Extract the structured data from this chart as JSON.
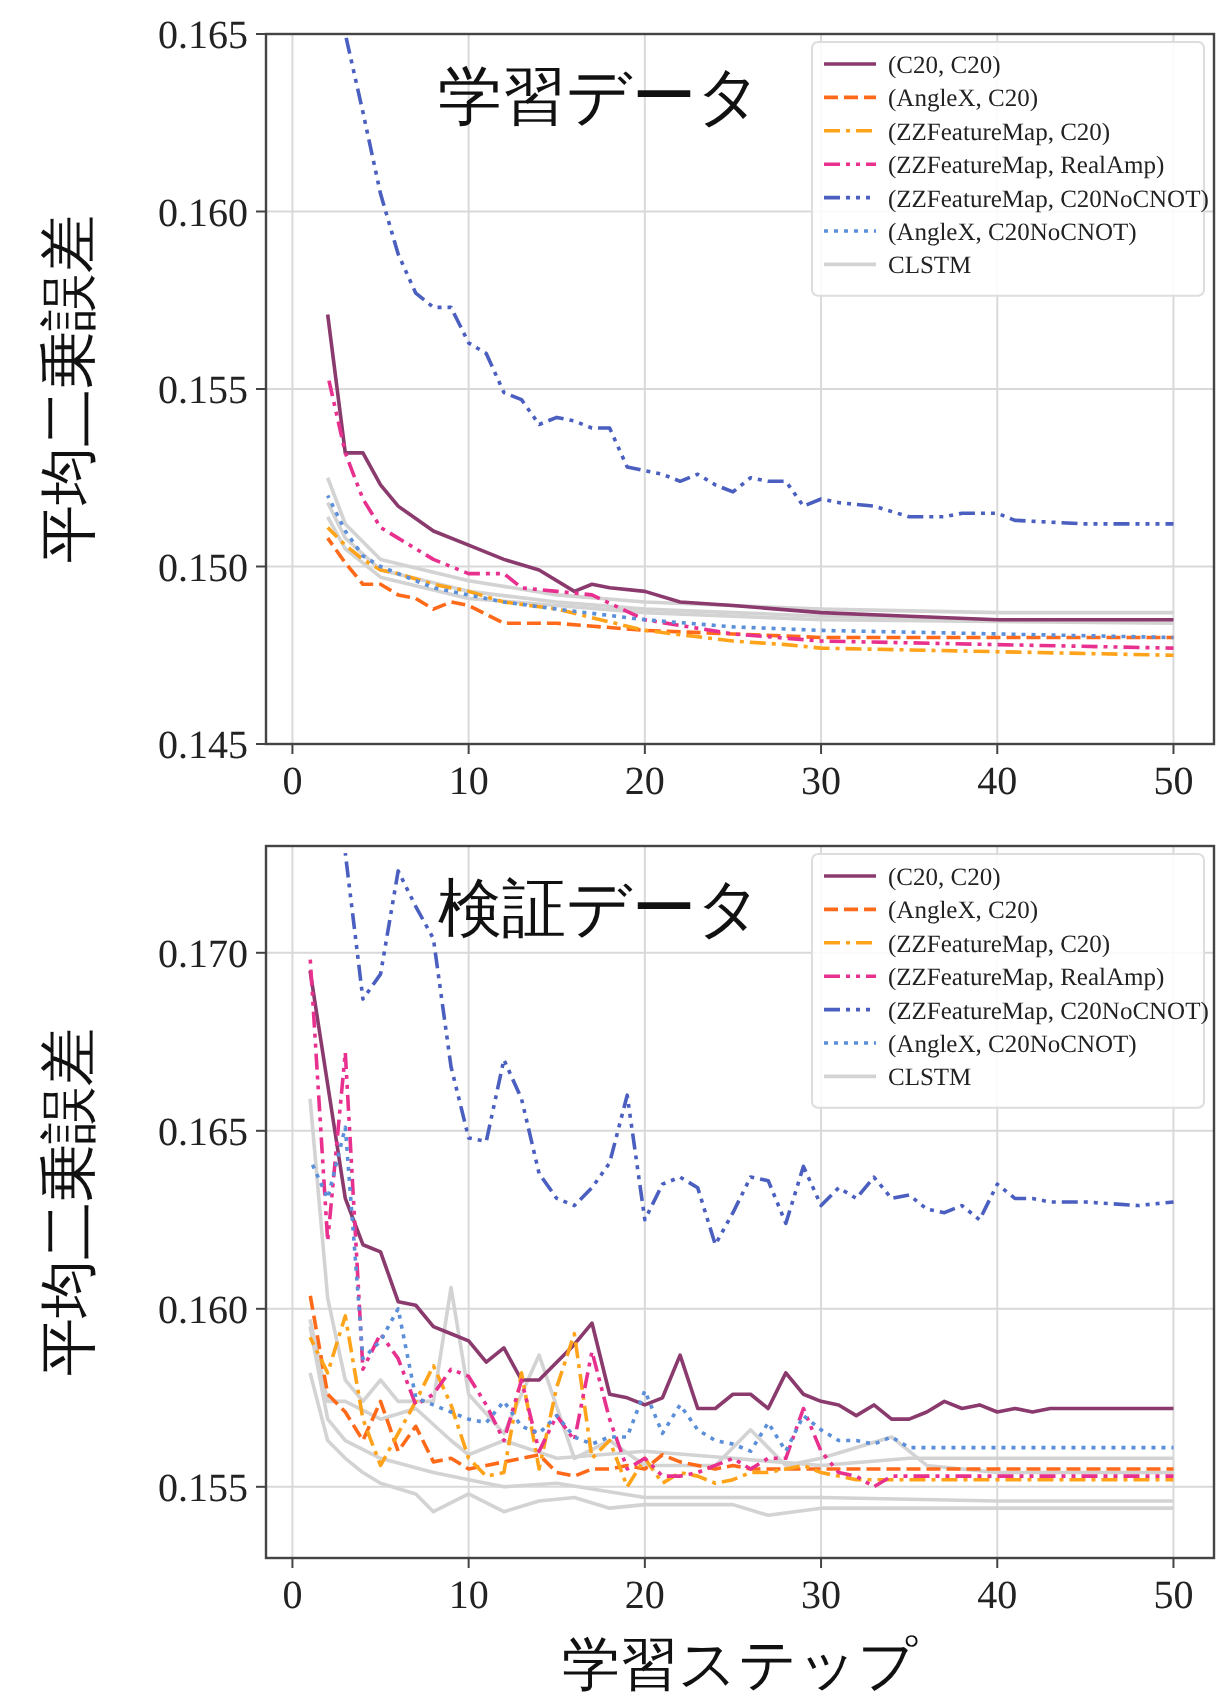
{
  "chart_data": [
    {
      "type": "line",
      "title": "学習データ",
      "ylabel": "平均二乗誤差",
      "xlim": [
        -1.5,
        52.3
      ],
      "ylim": [
        0.145,
        0.165
      ],
      "xticks": [
        0,
        10,
        20,
        30,
        40,
        50
      ],
      "yticks": [
        0.145,
        {
          "value": 0.15,
          "label": "0.150"
        },
        0.155,
        {
          "value": 0.16,
          "label": "0.160"
        },
        0.165
      ],
      "grid": true,
      "legend": "top right",
      "series": [
        {
          "name": "(C20, C20)",
          "color": "#8b3a6e",
          "line_style": "solid",
          "x": [
            2,
            3,
            4,
            5,
            6,
            8,
            10,
            12,
            14,
            16,
            17,
            18,
            20,
            22,
            25,
            30,
            35,
            40,
            50
          ],
          "values": [
            0.1571,
            0.1532,
            0.1532,
            0.1523,
            0.1517,
            0.151,
            0.1506,
            0.1502,
            0.1499,
            0.1493,
            0.1495,
            0.1494,
            0.1493,
            0.149,
            0.1489,
            0.1487,
            0.1486,
            0.1485,
            0.1485
          ]
        },
        {
          "name": "(AngleX, C20)",
          "color": "#ff6a1a",
          "line_style": "dashed",
          "x": [
            2,
            3,
            4,
            5,
            6,
            7,
            8,
            9,
            10,
            12,
            15,
            20,
            25,
            30,
            40,
            50
          ],
          "values": [
            0.1508,
            0.1501,
            0.1495,
            0.1495,
            0.1492,
            0.1491,
            0.1488,
            0.149,
            0.1489,
            0.1484,
            0.1484,
            0.1482,
            0.1481,
            0.148,
            0.148,
            0.148
          ]
        },
        {
          "name": "(ZZFeatureMap, C20)",
          "color": "#ffa31a",
          "line_style": "dashdot",
          "x": [
            2,
            3,
            4,
            5,
            6,
            8,
            10,
            12,
            15,
            20,
            25,
            28,
            30,
            40,
            50
          ],
          "values": [
            0.1511,
            0.1506,
            0.1502,
            0.1499,
            0.1498,
            0.1495,
            0.1493,
            0.149,
            0.1488,
            0.1482,
            0.1479,
            0.1478,
            0.1477,
            0.1476,
            0.1475
          ]
        },
        {
          "name": "(ZZFeatureMap, RealAmp)",
          "color": "#e8318f",
          "line_style": "dashdotdot",
          "x": [
            2,
            3,
            4,
            5,
            6,
            8,
            10,
            12,
            13,
            15,
            17,
            20,
            25,
            30,
            40,
            50
          ],
          "values": [
            0.1554,
            0.1532,
            0.1519,
            0.1511,
            0.1508,
            0.1502,
            0.1498,
            0.1498,
            0.1494,
            0.1493,
            0.1492,
            0.1485,
            0.1481,
            0.1479,
            0.1478,
            0.1477
          ]
        },
        {
          "name": "(ZZFeatureMap, C20NoCNOT)",
          "color": "#4a5fbf",
          "line_style": "dashdotdotdot",
          "x": [
            3,
            4,
            5,
            6,
            7,
            8,
            9,
            10,
            11,
            12,
            13,
            14,
            15,
            16,
            17,
            18,
            19,
            20,
            21,
            22,
            23,
            24,
            25,
            26,
            27,
            28,
            29,
            30,
            31,
            33,
            35,
            37,
            38,
            40,
            41,
            45,
            50
          ],
          "values": [
            0.165,
            0.1628,
            0.1605,
            0.1588,
            0.1577,
            0.1573,
            0.1573,
            0.1563,
            0.156,
            0.1549,
            0.1547,
            0.154,
            0.1542,
            0.1541,
            0.1539,
            0.1539,
            0.1528,
            0.1527,
            0.1526,
            0.1524,
            0.1526,
            0.1523,
            0.1521,
            0.1525,
            0.1524,
            0.1524,
            0.1517,
            0.1519,
            0.1518,
            0.1517,
            0.1514,
            0.1514,
            0.1515,
            0.1515,
            0.1513,
            0.1512,
            0.1512
          ]
        },
        {
          "name": "(AngleX, C20NoCNOT)",
          "color": "#5b8fd9",
          "line_style": "dotted",
          "x": [
            2,
            3,
            4,
            5,
            6,
            8,
            10,
            12,
            15,
            20,
            25,
            30,
            40,
            50
          ],
          "values": [
            0.152,
            0.151,
            0.1503,
            0.15,
            0.1498,
            0.1494,
            0.1492,
            0.149,
            0.1488,
            0.1485,
            0.1483,
            0.1482,
            0.1481,
            0.148
          ]
        },
        {
          "name": "CLSTM",
          "color": "#d3d3d3",
          "line_style": "solid",
          "x": [
            2,
            3,
            5,
            10,
            15,
            20,
            30,
            40,
            50
          ],
          "values": [
            0.1525,
            0.1512,
            0.1502,
            0.1496,
            0.1492,
            0.149,
            0.1488,
            0.1487,
            0.1487
          ]
        },
        {
          "color": "#d3d3d3",
          "line_style": "solid",
          "x": [
            2,
            3,
            5,
            10,
            15,
            20,
            30,
            40,
            50
          ],
          "values": [
            0.1518,
            0.1508,
            0.1499,
            0.1493,
            0.149,
            0.1488,
            0.1486,
            0.1485,
            0.1485
          ]
        },
        {
          "color": "#d3d3d3",
          "line_style": "solid",
          "x": [
            2,
            3,
            5,
            10,
            15,
            20,
            30,
            50
          ],
          "values": [
            0.1514,
            0.1505,
            0.1497,
            0.1491,
            0.1489,
            0.1487,
            0.1485,
            0.1484
          ]
        }
      ]
    },
    {
      "type": "line",
      "title": "検証データ",
      "xlabel": "学習ステップ",
      "ylabel": "平均二乗誤差",
      "xlim": [
        -1.5,
        52.3
      ],
      "ylim": [
        0.153,
        0.173
      ],
      "xticks": [
        0,
        10,
        20,
        30,
        40,
        50
      ],
      "yticks": [
        0.155,
        {
          "value": 0.16,
          "label": "0.160"
        },
        0.165,
        {
          "value": 0.17,
          "label": "0.170"
        }
      ],
      "grid": true,
      "legend": "top right",
      "series": [
        {
          "name": "(C20, C20)",
          "color": "#8b3a6e",
          "line_style": "solid",
          "x": [
            1,
            2,
            3,
            4,
            5,
            6,
            7,
            8,
            9,
            10,
            11,
            12,
            13,
            14,
            15,
            16,
            17,
            18,
            19,
            20,
            21,
            22,
            23,
            24,
            25,
            26,
            27,
            28,
            29,
            30,
            31,
            32,
            33,
            34,
            35,
            36,
            37,
            38,
            39,
            40,
            41,
            42,
            43,
            44,
            45,
            50
          ],
          "values": [
            0.1695,
            0.1663,
            0.1631,
            0.1618,
            0.1616,
            0.1602,
            0.1601,
            0.1595,
            0.1593,
            0.1591,
            0.1585,
            0.1589,
            0.158,
            0.158,
            0.1585,
            0.159,
            0.1596,
            0.1576,
            0.1575,
            0.1573,
            0.1575,
            0.1587,
            0.1572,
            0.1572,
            0.1576,
            0.1576,
            0.1572,
            0.1582,
            0.1576,
            0.1574,
            0.1573,
            0.157,
            0.1573,
            0.1569,
            0.1569,
            0.1571,
            0.1574,
            0.1572,
            0.1573,
            0.1571,
            0.1572,
            0.1571,
            0.1572,
            0.1572,
            0.1572,
            0.1572
          ]
        },
        {
          "name": "(AngleX, C20)",
          "color": "#ff6a1a",
          "line_style": "dashed",
          "x": [
            1,
            2,
            3,
            4,
            5,
            6,
            7,
            8,
            9,
            10,
            11,
            12,
            13,
            14,
            15,
            16,
            17,
            18,
            19,
            20,
            21,
            22,
            23,
            24,
            25,
            26,
            30,
            40,
            50
          ],
          "values": [
            0.1604,
            0.1576,
            0.1571,
            0.1563,
            0.1574,
            0.156,
            0.1567,
            0.1557,
            0.1558,
            0.1555,
            0.1556,
            0.1557,
            0.1558,
            0.1559,
            0.1554,
            0.1553,
            0.1555,
            0.1555,
            0.1556,
            0.1555,
            0.1559,
            0.1557,
            0.1556,
            0.1555,
            0.1556,
            0.1555,
            0.1555,
            0.1555,
            0.1555
          ]
        },
        {
          "name": "(ZZFeatureMap, C20)",
          "color": "#ffa31a",
          "line_style": "dashdot",
          "x": [
            1,
            2,
            3,
            4,
            5,
            6,
            7,
            8,
            9,
            10,
            11,
            12,
            13,
            14,
            15,
            16,
            17,
            18,
            19,
            20,
            21,
            22,
            23,
            24,
            25,
            26,
            27,
            28,
            29,
            30,
            32,
            35,
            40,
            45,
            50
          ],
          "values": [
            0.1592,
            0.1582,
            0.1598,
            0.1569,
            0.1556,
            0.1565,
            0.1574,
            0.1584,
            0.1573,
            0.1558,
            0.1553,
            0.1554,
            0.1582,
            0.1555,
            0.1578,
            0.1593,
            0.1558,
            0.1563,
            0.155,
            0.1558,
            0.1551,
            0.1554,
            0.1553,
            0.1551,
            0.1552,
            0.1554,
            0.1554,
            0.1555,
            0.1556,
            0.1554,
            0.1552,
            0.1552,
            0.1552,
            0.1552,
            0.1552
          ]
        },
        {
          "name": "(ZZFeatureMap, RealAmp)",
          "color": "#e8318f",
          "line_style": "dashdotdot",
          "x": [
            1,
            2,
            3,
            4,
            5,
            6,
            7,
            8,
            9,
            10,
            11,
            12,
            13,
            14,
            15,
            16,
            17,
            18,
            19,
            20,
            21,
            22,
            23,
            24,
            25,
            26,
            27,
            28,
            29,
            30,
            31,
            32,
            33,
            34,
            35,
            40,
            45,
            50
          ],
          "values": [
            0.1699,
            0.1619,
            0.1672,
            0.1583,
            0.1593,
            0.1586,
            0.1573,
            0.1576,
            0.1583,
            0.1581,
            0.1573,
            0.1563,
            0.158,
            0.156,
            0.157,
            0.1563,
            0.1588,
            0.1569,
            0.1555,
            0.1558,
            0.1553,
            0.1553,
            0.1554,
            0.1556,
            0.1558,
            0.1555,
            0.1558,
            0.1558,
            0.1572,
            0.156,
            0.1554,
            0.1553,
            0.155,
            0.1553,
            0.1553,
            0.1553,
            0.1553,
            0.1553
          ]
        },
        {
          "name": "(ZZFeatureMap, C20NoCNOT)",
          "color": "#4a5fbf",
          "line_style": "dashdotdotdot",
          "x": [
            3,
            4,
            5,
            6,
            7,
            8,
            9,
            10,
            11,
            12,
            13,
            14,
            15,
            16,
            17,
            18,
            19,
            20,
            21,
            22,
            23,
            24,
            25,
            26,
            27,
            28,
            29,
            30,
            31,
            32,
            33,
            34,
            35,
            36,
            37,
            38,
            39,
            40,
            41,
            42,
            43,
            45,
            48,
            50
          ],
          "values": [
            0.1728,
            0.1687,
            0.1694,
            0.1723,
            0.1713,
            0.1704,
            0.1668,
            0.1648,
            0.1647,
            0.167,
            0.1659,
            0.1638,
            0.1631,
            0.1629,
            0.1634,
            0.1641,
            0.166,
            0.1625,
            0.1635,
            0.1637,
            0.1634,
            0.1618,
            0.1627,
            0.1637,
            0.1636,
            0.1624,
            0.164,
            0.1629,
            0.1634,
            0.1631,
            0.1637,
            0.1631,
            0.1632,
            0.1628,
            0.1627,
            0.1629,
            0.1625,
            0.1635,
            0.1631,
            0.1631,
            0.163,
            0.163,
            0.1629,
            0.163
          ]
        },
        {
          "name": "(AngleX, C20NoCNOT)",
          "color": "#5b8fd9",
          "line_style": "dotted",
          "x": [
            1,
            2,
            3,
            4,
            5,
            6,
            7,
            8,
            9,
            10,
            11,
            12,
            13,
            14,
            15,
            16,
            17,
            18,
            19,
            20,
            21,
            22,
            23,
            24,
            25,
            26,
            27,
            28,
            29,
            30,
            31,
            32,
            33,
            34,
            35,
            36,
            40,
            45,
            50
          ],
          "values": [
            0.1642,
            0.1631,
            0.1651,
            0.1586,
            0.1591,
            0.16,
            0.1575,
            0.1573,
            0.1571,
            0.1569,
            0.1568,
            0.1574,
            0.1567,
            0.1565,
            0.157,
            0.1564,
            0.1562,
            0.1564,
            0.1564,
            0.1577,
            0.1565,
            0.1573,
            0.1566,
            0.1563,
            0.1562,
            0.156,
            0.1568,
            0.156,
            0.157,
            0.1566,
            0.1563,
            0.1563,
            0.1562,
            0.1564,
            0.1561,
            0.1561,
            0.1561,
            0.1561,
            0.1561
          ]
        },
        {
          "name": "CLSTM",
          "color": "#d3d3d3",
          "line_style": "solid",
          "x": [
            1,
            2,
            3,
            4,
            5,
            7,
            8,
            10,
            12,
            14,
            16,
            18,
            20,
            25,
            27,
            30,
            40,
            50
          ],
          "values": [
            0.1582,
            0.1563,
            0.1558,
            0.1554,
            0.1551,
            0.1548,
            0.1543,
            0.1548,
            0.1543,
            0.1546,
            0.1547,
            0.1544,
            0.1545,
            0.1545,
            0.1542,
            0.1544,
            0.1544,
            0.1544
          ]
        },
        {
          "color": "#d3d3d3",
          "line_style": "solid",
          "x": [
            1,
            2,
            3,
            5,
            8,
            10,
            12,
            15,
            20,
            25,
            30,
            40,
            50
          ],
          "values": [
            0.1595,
            0.1569,
            0.1563,
            0.1558,
            0.1554,
            0.1552,
            0.155,
            0.1551,
            0.1547,
            0.1547,
            0.1547,
            0.1546,
            0.1546
          ]
        },
        {
          "color": "#d3d3d3",
          "line_style": "solid",
          "x": [
            1,
            2,
            3,
            4,
            5,
            6,
            8,
            9,
            10,
            12,
            14,
            16,
            18,
            20,
            24,
            26,
            28,
            30,
            34,
            36,
            40,
            50
          ],
          "values": [
            0.1659,
            0.1603,
            0.158,
            0.1574,
            0.158,
            0.1574,
            0.1574,
            0.1606,
            0.1576,
            0.1565,
            0.1587,
            0.1558,
            0.1563,
            0.1556,
            0.1556,
            0.1566,
            0.1556,
            0.1558,
            0.1564,
            0.1556,
            0.1554,
            0.1554
          ]
        },
        {
          "color": "#d3d3d3",
          "line_style": "solid",
          "x": [
            1,
            2,
            3,
            5,
            7,
            9,
            10,
            12,
            15,
            20,
            25,
            30,
            35,
            40,
            50
          ],
          "values": [
            0.1597,
            0.1574,
            0.1574,
            0.1569,
            0.1572,
            0.1563,
            0.1559,
            0.1563,
            0.1558,
            0.156,
            0.1558,
            0.1556,
            0.1558,
            0.1558,
            0.1558
          ]
        }
      ]
    }
  ]
}
